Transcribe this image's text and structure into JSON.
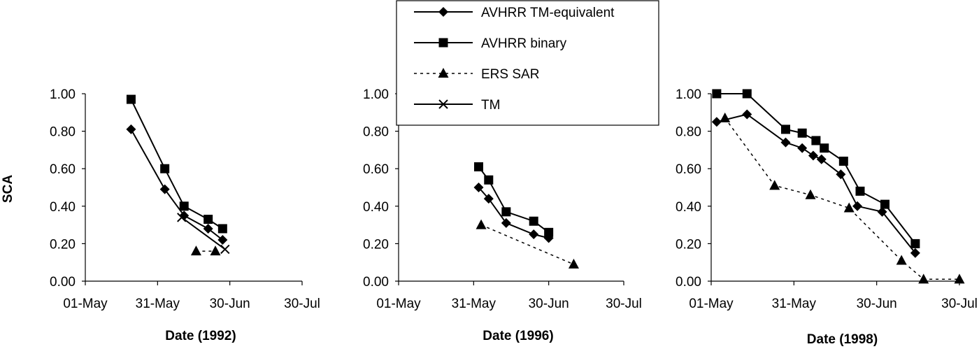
{
  "chart_data": [
    {
      "type": "line",
      "xlabel": "Date (1992)",
      "ylabel": "SCA",
      "xlim": [
        "1992-05-01",
        "1992-07-30"
      ],
      "xticks": [
        "01-May",
        "31-May",
        "30-Jun",
        "30-Jul"
      ],
      "ylim": [
        0,
        1
      ],
      "yticks": [
        "0.00",
        "0.20",
        "0.40",
        "0.60",
        "0.80",
        "1.00"
      ],
      "grid": false,
      "series": [
        {
          "name": "AVHRR TM-equivalent",
          "marker": "diamond",
          "dash": "solid",
          "x": [
            "1992-05-20",
            "1992-06-03",
            "1992-06-11",
            "1992-06-21",
            "1992-06-27"
          ],
          "y": [
            0.81,
            0.49,
            0.35,
            0.28,
            0.22
          ]
        },
        {
          "name": "AVHRR binary",
          "marker": "square",
          "dash": "solid",
          "x": [
            "1992-05-20",
            "1992-06-03",
            "1992-06-11",
            "1992-06-21",
            "1992-06-27"
          ],
          "y": [
            0.97,
            0.6,
            0.4,
            0.33,
            0.28
          ]
        },
        {
          "name": "ERS SAR",
          "marker": "triangle",
          "dash": "dotted",
          "x": [
            "1992-06-16",
            "1992-06-24"
          ],
          "y": [
            0.16,
            0.16
          ]
        },
        {
          "name": "TM",
          "marker": "x",
          "dash": "solid",
          "x": [
            "1992-06-10",
            "1992-06-28"
          ],
          "y": [
            0.34,
            0.17
          ]
        }
      ]
    },
    {
      "type": "line",
      "xlabel": "Date (1996)",
      "ylabel": "",
      "xlim": [
        "1996-05-01",
        "1996-07-30"
      ],
      "xticks": [
        "01-May",
        "31-May",
        "30-Jun",
        "30-Jul"
      ],
      "ylim": [
        0,
        1
      ],
      "yticks": [
        "0.00",
        "0.20",
        "0.40",
        "0.60",
        "0.80",
        "1.00"
      ],
      "grid": false,
      "series": [
        {
          "name": "AVHRR TM-equivalent",
          "marker": "diamond",
          "dash": "solid",
          "x": [
            "1996-06-02",
            "1996-06-06",
            "1996-06-13",
            "1996-06-24",
            "1996-06-30"
          ],
          "y": [
            0.5,
            0.44,
            0.31,
            0.25,
            0.23
          ]
        },
        {
          "name": "AVHRR binary",
          "marker": "square",
          "dash": "solid",
          "x": [
            "1996-06-02",
            "1996-06-06",
            "1996-06-13",
            "1996-06-24",
            "1996-06-30"
          ],
          "y": [
            0.61,
            0.54,
            0.37,
            0.32,
            0.26
          ]
        },
        {
          "name": "ERS SAR",
          "marker": "triangle",
          "dash": "dotted",
          "x": [
            "1996-06-03",
            "1996-07-10"
          ],
          "y": [
            0.3,
            0.09
          ]
        }
      ]
    },
    {
      "type": "line",
      "xlabel": "Date (1998)",
      "ylabel": "",
      "xlim": [
        "1998-05-01",
        "1998-07-30"
      ],
      "xticks": [
        "01-May",
        "31-May",
        "30-Jun",
        "30-Jul"
      ],
      "ylim": [
        0,
        1
      ],
      "yticks": [
        "0.00",
        "0.20",
        "0.40",
        "0.60",
        "0.80",
        "1.00"
      ],
      "grid": false,
      "series": [
        {
          "name": "AVHRR TM-equivalent",
          "marker": "diamond",
          "dash": "solid",
          "x": [
            "1998-05-03",
            "1998-05-14",
            "1998-05-28",
            "1998-06-03",
            "1998-06-07",
            "1998-06-10",
            "1998-06-17",
            "1998-06-23",
            "1998-07-02",
            "1998-07-14"
          ],
          "y": [
            0.85,
            0.89,
            0.74,
            0.71,
            0.67,
            0.65,
            0.57,
            0.4,
            0.37,
            0.15
          ]
        },
        {
          "name": "AVHRR binary",
          "marker": "square",
          "dash": "solid",
          "x": [
            "1998-05-03",
            "1998-05-14",
            "1998-05-28",
            "1998-06-03",
            "1998-06-08",
            "1998-06-11",
            "1998-06-18",
            "1998-06-24",
            "1998-07-03",
            "1998-07-14"
          ],
          "y": [
            1.0,
            1.0,
            0.81,
            0.79,
            0.75,
            0.71,
            0.64,
            0.48,
            0.41,
            0.2
          ]
        },
        {
          "name": "ERS SAR",
          "marker": "triangle",
          "dash": "dotted",
          "x": [
            "1998-05-06",
            "1998-05-24",
            "1998-06-06",
            "1998-06-20",
            "1998-07-09",
            "1998-07-17",
            "1998-07-30"
          ],
          "y": [
            0.87,
            0.51,
            0.46,
            0.39,
            0.11,
            0.01,
            0.01
          ]
        }
      ]
    }
  ],
  "legend": {
    "placement": "top-center",
    "entries": [
      {
        "label": "AVHRR TM-equivalent",
        "marker": "diamond",
        "dash": "solid"
      },
      {
        "label": "AVHRR binary",
        "marker": "square",
        "dash": "solid"
      },
      {
        "label": "ERS SAR",
        "marker": "triangle",
        "dash": "dotted"
      },
      {
        "label": "TM",
        "marker": "x",
        "dash": "solid"
      }
    ]
  },
  "colors": {
    "ink": "#000000",
    "background": "#ffffff"
  }
}
